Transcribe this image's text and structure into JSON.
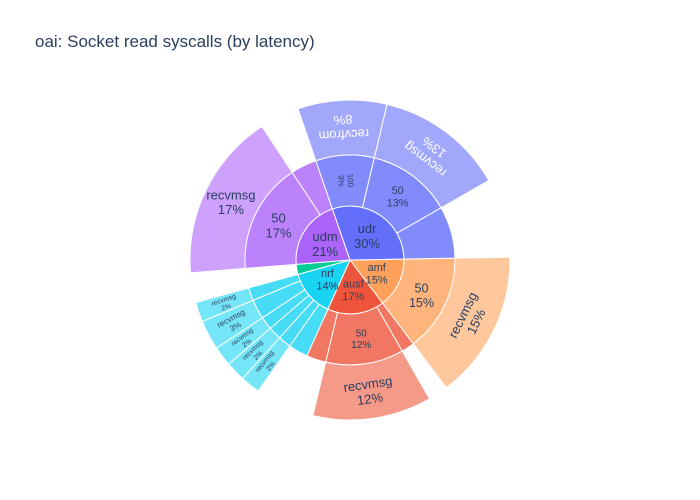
{
  "chart_data": {
    "type": "sunburst",
    "title": "oai: Socket read syscalls (by latency)",
    "colors": {
      "udr": "#636efa",
      "ausf": "#ef553b",
      "amf": "#ffa15a",
      "nrf": "#19d3f3",
      "udm": "#ab63fa",
      "other": "#00cc96"
    },
    "order": [
      "amf",
      "ausf",
      "nrf",
      "other",
      "udm",
      "udr"
    ],
    "nodes": [
      {
        "name": "udr",
        "label": "udr",
        "percent": "30%",
        "value": 30,
        "children": [
          {
            "label": "100",
            "percent": "9%",
            "value": 9,
            "children": [
              {
                "label": "recvfrom",
                "percent": "8%",
                "value": 8
              }
            ]
          },
          {
            "label": "50",
            "percent": "13%",
            "value": 13,
            "children": [
              {
                "label": "recvmsg",
                "percent": "13%",
                "value": 13
              }
            ]
          },
          {
            "label": "",
            "percent": "",
            "value": 8
          }
        ]
      },
      {
        "name": "udm",
        "label": "udm",
        "percent": "21%",
        "value": 21,
        "children": [
          {
            "label": "50",
            "percent": "17%",
            "value": 17,
            "children": [
              {
                "label": "recvmsg",
                "percent": "17%",
                "value": 17
              }
            ]
          },
          {
            "label": "",
            "percent": "",
            "value": 4
          }
        ]
      },
      {
        "name": "other",
        "label": "",
        "percent": "",
        "value": 3,
        "children": []
      },
      {
        "name": "nrf",
        "label": "nrf",
        "percent": "14%",
        "value": 14,
        "children": [
          {
            "label": "",
            "percent": "",
            "value": 3
          },
          {
            "label": "",
            "percent": "",
            "value": 2,
            "children": [
              {
                "label": "recvmsg",
                "percent": "2%",
                "value": 2
              }
            ]
          },
          {
            "label": "",
            "percent": "",
            "value": 2,
            "children": [
              {
                "label": "recvmsg",
                "percent": "2%",
                "value": 2
              }
            ]
          },
          {
            "label": "",
            "percent": "",
            "value": 2,
            "children": [
              {
                "label": "recvmsg",
                "percent": "2%",
                "value": 2
              }
            ]
          },
          {
            "label": "",
            "percent": "",
            "value": 3,
            "children": [
              {
                "label": "recvmsg",
                "percent": "3%",
                "value": 3
              }
            ]
          },
          {
            "label": "",
            "percent": "",
            "value": 2,
            "children": [
              {
                "label": "recvmsg",
                "percent": "2%",
                "value": 2
              }
            ]
          }
        ]
      },
      {
        "name": "ausf",
        "label": "ausf",
        "percent": "17%",
        "value": 17,
        "children": [
          {
            "label": "",
            "percent": "",
            "value": 2
          },
          {
            "label": "50",
            "percent": "12%",
            "value": 12,
            "children": [
              {
                "label": "recvmsg",
                "percent": "12%",
                "value": 12
              }
            ]
          },
          {
            "label": "",
            "percent": "",
            "value": 3
          }
        ]
      },
      {
        "name": "amf",
        "label": "amf",
        "percent": "15%",
        "value": 15,
        "children": [
          {
            "label": "50",
            "percent": "15%",
            "value": 15,
            "children": [
              {
                "label": "recvmsg",
                "percent": "15%",
                "value": 15
              }
            ]
          }
        ]
      }
    ]
  }
}
